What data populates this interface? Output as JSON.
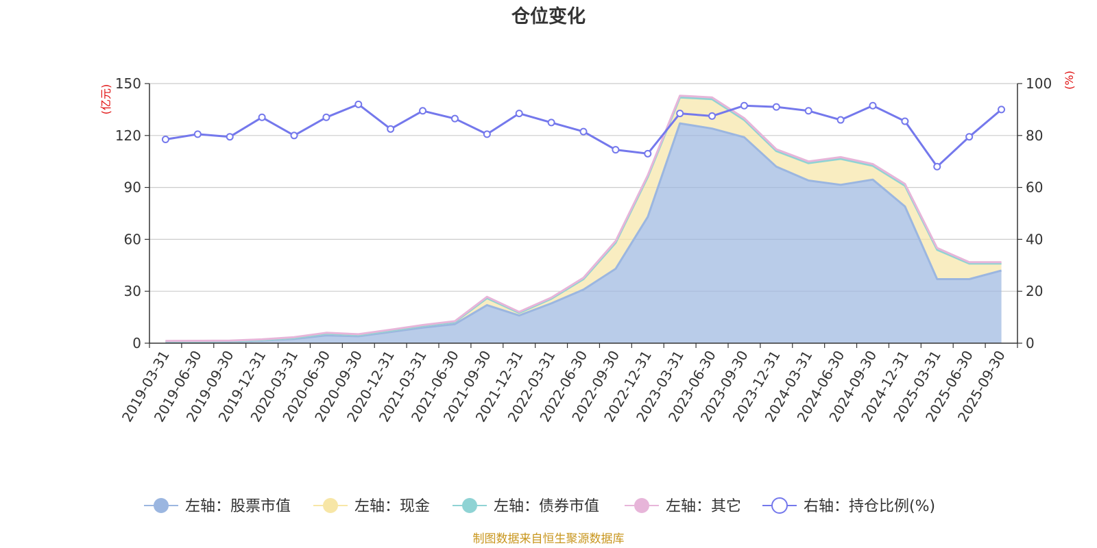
{
  "chart_data": {
    "type": "area",
    "title": "仓位变化",
    "categories": [
      "2019-03-31",
      "2019-06-30",
      "2019-09-30",
      "2019-12-31",
      "2020-03-31",
      "2020-06-30",
      "2020-09-30",
      "2020-12-31",
      "2021-03-31",
      "2021-06-30",
      "2021-09-30",
      "2021-12-31",
      "2022-03-31",
      "2022-06-30",
      "2022-09-30",
      "2022-12-31",
      "2023-03-31",
      "2023-06-30",
      "2023-09-30",
      "2023-12-31",
      "2024-03-31",
      "2024-06-30",
      "2024-09-30",
      "2024-12-31",
      "2025-03-31",
      "2025-06-30",
      "2025-09-30"
    ],
    "left_axis": {
      "unit": "(亿元)",
      "min": 0,
      "max": 150,
      "ticks": [
        0,
        30,
        60,
        90,
        120,
        150
      ]
    },
    "right_axis": {
      "unit": "(%)",
      "min": 0,
      "max": 100,
      "ticks": [
        0,
        20,
        40,
        60,
        80,
        100
      ]
    },
    "series": [
      {
        "name": "左轴：股票市值",
        "axis": "left",
        "color": "#9bb6e0",
        "values": [
          0.8,
          0.9,
          1.0,
          1.5,
          2.5,
          4.5,
          4.0,
          6.5,
          9.0,
          11.0,
          22.0,
          16.0,
          23.0,
          31.0,
          43.0,
          73.0,
          127.0,
          124.0,
          119.0,
          102.0,
          94.0,
          91.5,
          94.5,
          79.0,
          37.0,
          37.0,
          42.0
        ]
      },
      {
        "name": "左轴：现金",
        "axis": "left",
        "color": "#f7e6a6",
        "values": [
          0.2,
          0.2,
          0.2,
          0.3,
          0.5,
          1.0,
          0.7,
          0.8,
          1.0,
          1.2,
          4.0,
          1.5,
          2.7,
          6.0,
          15.0,
          23.0,
          15.0,
          17.0,
          10.0,
          9.0,
          10.0,
          15.0,
          8.0,
          12.0,
          17.0,
          9.0,
          4.0
        ]
      },
      {
        "name": "左轴：债券市值",
        "axis": "left",
        "color": "#8fd3d4",
        "values": [
          0,
          0,
          0,
          0,
          0,
          0,
          0,
          0,
          0,
          0,
          0,
          0,
          0,
          0,
          0,
          0,
          0,
          0,
          0,
          0,
          0,
          0,
          0,
          0,
          0,
          0,
          0
        ]
      },
      {
        "name": "左轴：其它",
        "axis": "left",
        "color": "#e7b5d9",
        "values": [
          0.3,
          0.3,
          0.3,
          0.4,
          0.5,
          0.5,
          0.5,
          0.5,
          0.5,
          0.5,
          0.8,
          0.6,
          0.6,
          0.8,
          1.0,
          1.0,
          1.0,
          1.0,
          1.0,
          1.0,
          1.0,
          1.0,
          1.0,
          1.0,
          1.0,
          0.8,
          0.8
        ]
      },
      {
        "name": "右轴：持仓比例(%)",
        "axis": "right",
        "color": "#7478ec",
        "values": [
          78.5,
          80.5,
          79.5,
          87.0,
          80.0,
          87.0,
          92.0,
          82.5,
          89.5,
          86.5,
          80.5,
          88.5,
          85.0,
          81.5,
          74.5,
          73.0,
          88.5,
          87.5,
          91.5,
          91.0,
          89.5,
          86.0,
          91.5,
          85.5,
          68.0,
          79.5,
          90.0
        ]
      }
    ]
  },
  "footer": {
    "source": "制图数据来自恒生聚源数据库"
  }
}
